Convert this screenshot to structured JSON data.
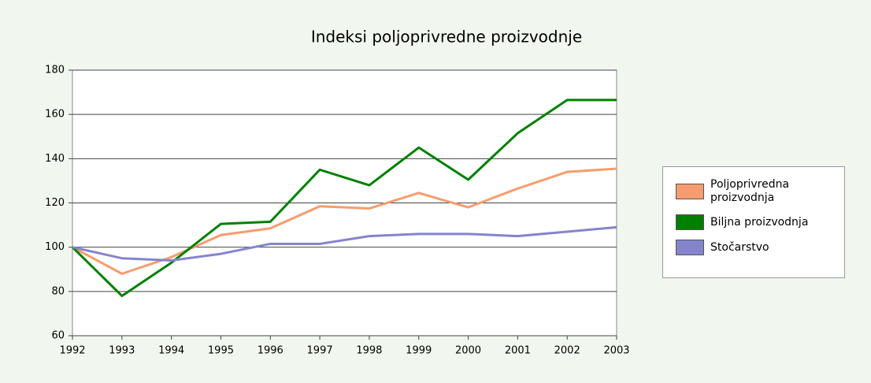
{
  "chart_data": {
    "type": "line",
    "title": "Indeksi poljoprivredne proizvodnje",
    "categories": [
      "1992",
      "1993",
      "1994",
      "1995",
      "1996",
      "1997",
      "1998",
      "1999",
      "2000",
      "2001",
      "2002",
      "2003"
    ],
    "series": [
      {
        "name": "Poljoprivredna proizvodnja",
        "color": "#f79c6e",
        "values": [
          100,
          88,
          95.5,
          105.5,
          108.5,
          118.5,
          117.5,
          124.5,
          118,
          126.5,
          134,
          135.5
        ]
      },
      {
        "name": "Biljna proizvodnja",
        "color": "#008000",
        "values": [
          100,
          78,
          93,
          110.5,
          111.5,
          135,
          128,
          145,
          130.5,
          151.5,
          166.5,
          166.5
        ]
      },
      {
        "name": "Stočarstvo",
        "color": "#8484cc",
        "values": [
          100,
          95,
          94,
          97,
          101.5,
          101.5,
          105,
          106,
          106,
          105,
          107,
          109
        ]
      }
    ],
    "ylim": [
      60,
      180
    ],
    "yticks": [
      60,
      80,
      100,
      120,
      140,
      160,
      180
    ],
    "grid": true,
    "legend": "right"
  }
}
